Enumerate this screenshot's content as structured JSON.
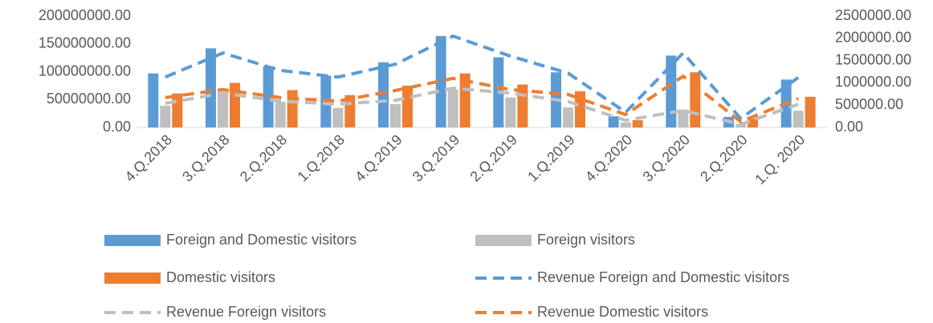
{
  "chart_data": {
    "type": "bar",
    "categories": [
      "4.Q.2018",
      "3.Q.2018",
      "2.Q.2018",
      "1.Q.2018",
      "4.Q.2019",
      "3.Q.2019",
      "2.Q.2019",
      "1.Q.2019",
      "4.Q.2020",
      "3.Q.2020",
      "2.Q.2020",
      "1.Q. 2020"
    ],
    "series": [
      {
        "name": "Foreign and Domestic visitors",
        "type": "bar",
        "color": "#5b9bd5",
        "values": [
          97000000,
          142000000,
          110000000,
          93000000,
          117000000,
          164000000,
          126000000,
          99000000,
          20000000,
          129000000,
          19000000,
          86000000
        ]
      },
      {
        "name": "Foreign visitors",
        "type": "bar",
        "color": "#bfbfbf",
        "values": [
          39000000,
          64000000,
          46000000,
          35000000,
          42000000,
          68000000,
          54000000,
          36000000,
          9000000,
          32000000,
          6000000,
          30000000
        ]
      },
      {
        "name": "Domestic visitors",
        "type": "bar",
        "color": "#ed7d31",
        "values": [
          61000000,
          80000000,
          67000000,
          58000000,
          75000000,
          97000000,
          77000000,
          65000000,
          13000000,
          99000000,
          16000000,
          55000000
        ]
      },
      {
        "name": "Revenue Foreign and Domestic visitors",
        "type": "line",
        "axis": "y2",
        "color": "#5b9bd5",
        "values": [
          1130000,
          1670000,
          1280000,
          1130000,
          1420000,
          2050000,
          1600000,
          1220000,
          340000,
          1670000,
          200000,
          1120000
        ]
      },
      {
        "name": "Revenue Foreign visitors",
        "type": "line",
        "axis": "y2",
        "color": "#bfbfbf",
        "values": [
          540000,
          770000,
          590000,
          520000,
          610000,
          880000,
          770000,
          580000,
          160000,
          380000,
          70000,
          520000
        ]
      },
      {
        "name": "Revenue Domestic visitors",
        "type": "line",
        "axis": "y2",
        "color": "#ed7d31",
        "values": [
          670000,
          850000,
          670000,
          590000,
          830000,
          1100000,
          850000,
          740000,
          290000,
          1150000,
          130000,
          650000
        ]
      }
    ],
    "ylim": [
      0,
      200000000
    ],
    "yticks": [
      {
        "value": 0,
        "label": "0.00"
      },
      {
        "value": 50000000,
        "label": "50000000.00"
      },
      {
        "value": 100000000,
        "label": "100000000.00"
      },
      {
        "value": 150000000,
        "label": "150000000.00"
      },
      {
        "value": 200000000,
        "label": "200000000.00"
      }
    ],
    "y2lim": [
      0,
      2500000
    ],
    "y2ticks": [
      {
        "value": 0,
        "label": "0.00"
      },
      {
        "value": 500000,
        "label": "500000.00"
      },
      {
        "value": 1000000,
        "label": "1000000.00"
      },
      {
        "value": 1500000,
        "label": "1500000.00"
      },
      {
        "value": 2000000,
        "label": "2000000.00"
      },
      {
        "value": 2500000,
        "label": "2500000.00"
      }
    ],
    "grid": false,
    "legend": "bottom"
  }
}
